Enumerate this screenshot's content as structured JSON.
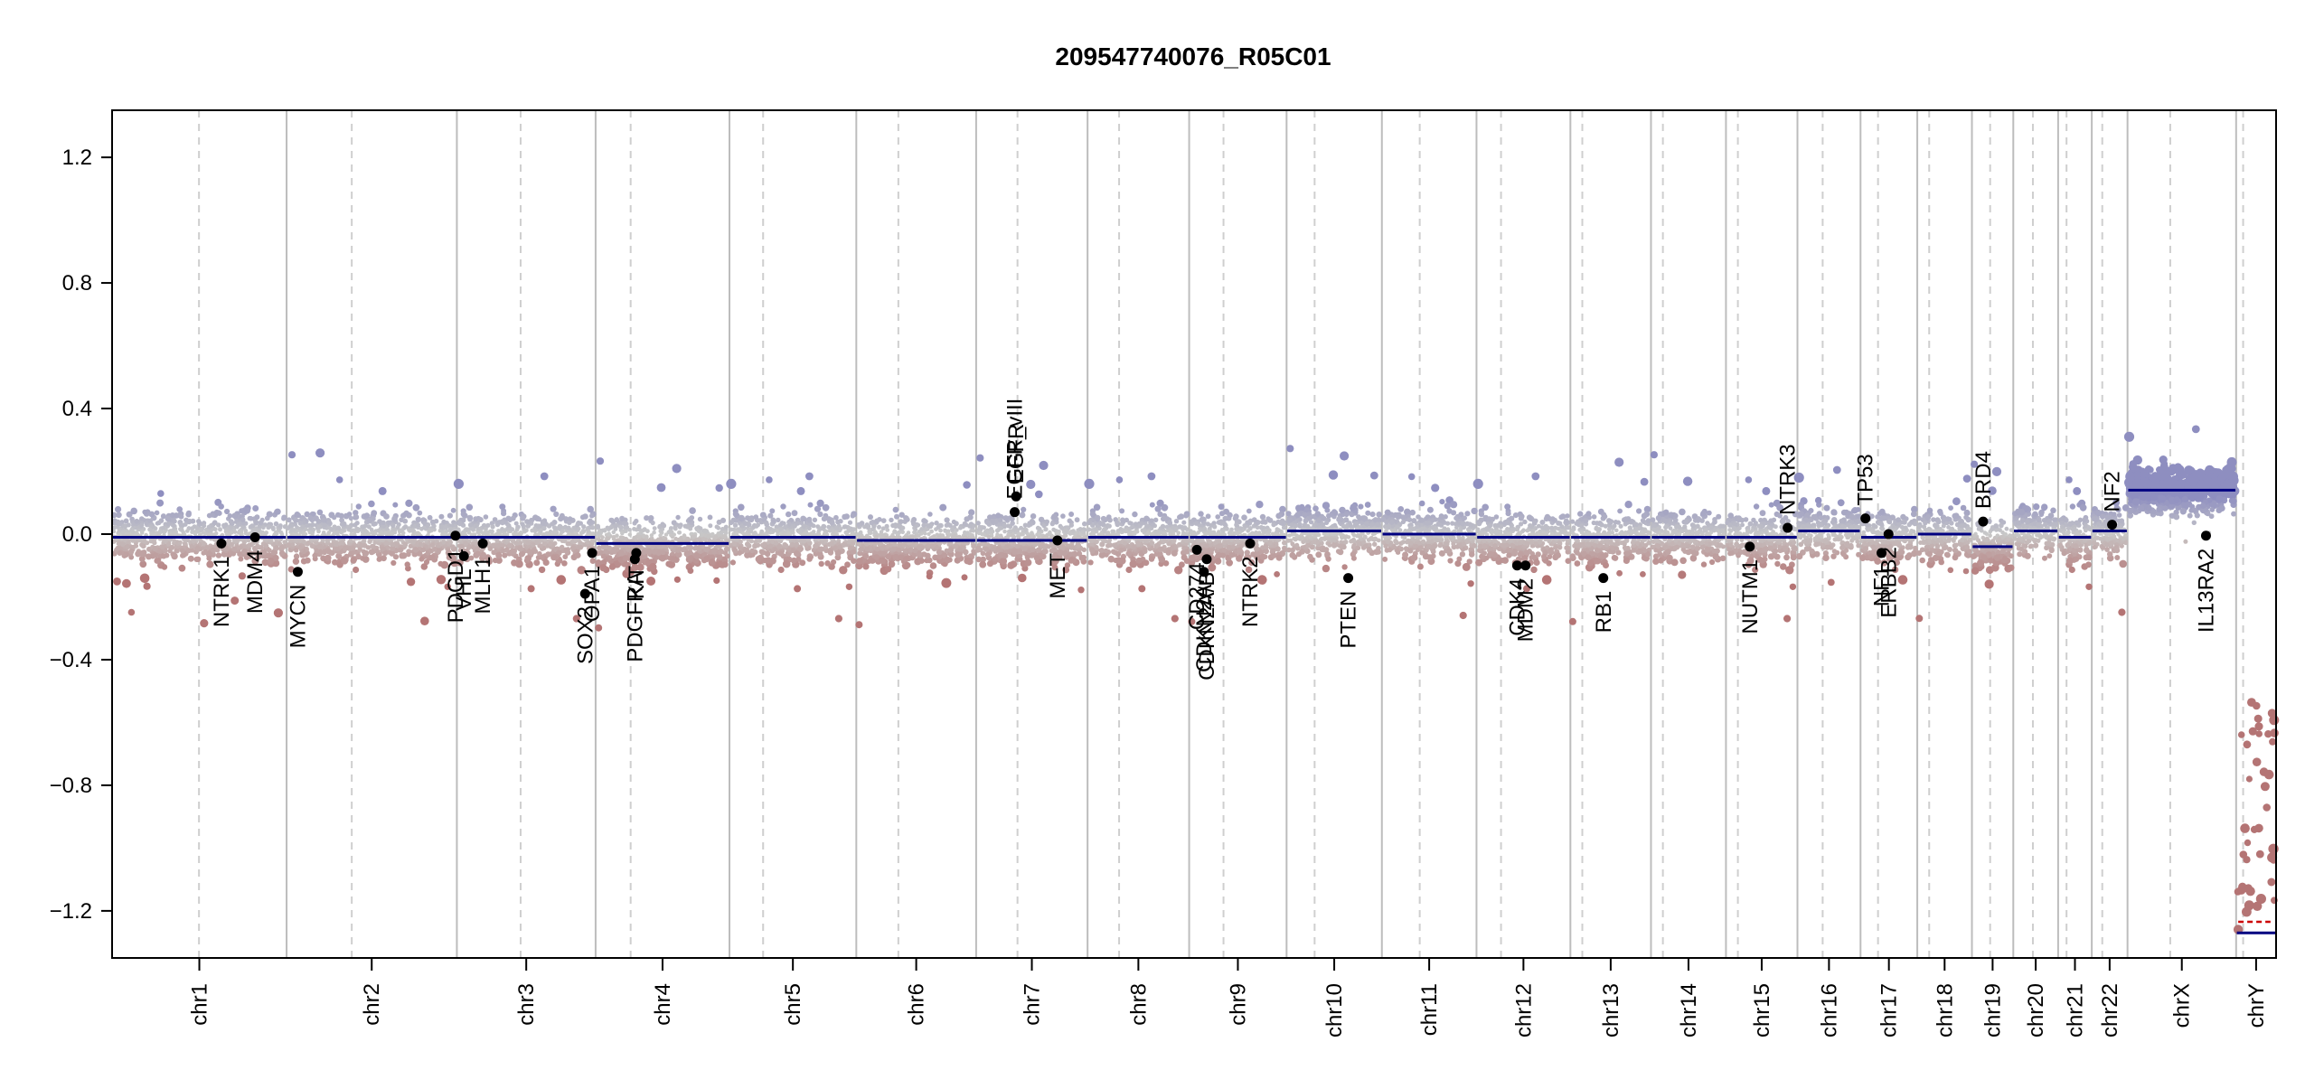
{
  "chart_data": {
    "type": "scatter",
    "title": "209547740076_R05C01",
    "xlabel": "",
    "ylabel": "",
    "ylim": [
      -1.35,
      1.35
    ],
    "y_ticks": [
      -1.2,
      -0.8,
      -0.4,
      0.0,
      0.4,
      0.8,
      1.2
    ],
    "y_tick_labels": [
      "−1.2",
      "−0.8",
      "−0.4",
      "0.0",
      "0.4",
      "0.8",
      "1.2"
    ],
    "grid": false,
    "colors": {
      "positive": "#8e8ec0",
      "neutral": "#c8c8c8",
      "negative": "#b47474",
      "segment": "#000080",
      "gene_point": "#000000",
      "boundary_line": "#bdbdbd",
      "centromere_line": "#cfcfcf",
      "chrY_red": "#cc0000"
    },
    "chromosomes": [
      {
        "name": "chr1",
        "start": 0,
        "end": 249,
        "centromere": 124,
        "seg": [
          -0.01
        ]
      },
      {
        "name": "chr2",
        "start": 249,
        "end": 492,
        "centromere": 342,
        "seg": [
          -0.01
        ]
      },
      {
        "name": "chr3",
        "start": 492,
        "end": 690,
        "centromere": 583,
        "seg": [
          -0.01
        ]
      },
      {
        "name": "chr4",
        "start": 690,
        "end": 881,
        "centromere": 740,
        "seg": [
          -0.03
        ]
      },
      {
        "name": "chr5",
        "start": 881,
        "end": 1062,
        "centromere": 929,
        "seg": [
          -0.01
        ]
      },
      {
        "name": "chr6",
        "start": 1062,
        "end": 1233,
        "centromere": 1122,
        "seg": [
          -0.02
        ]
      },
      {
        "name": "chr7",
        "start": 1233,
        "end": 1392,
        "centromere": 1292,
        "seg": [
          -0.02
        ]
      },
      {
        "name": "chr8",
        "start": 1392,
        "end": 1537,
        "centromere": 1437,
        "seg": [
          -0.01
        ]
      },
      {
        "name": "chr9",
        "start": 1537,
        "end": 1676,
        "centromere": 1586,
        "seg": [
          -0.01
        ]
      },
      {
        "name": "chr10",
        "start": 1676,
        "end": 1812,
        "centromere": 1716,
        "seg": [
          0.01
        ]
      },
      {
        "name": "chr11",
        "start": 1812,
        "end": 1947,
        "centromere": 1866,
        "seg": [
          0.0
        ]
      },
      {
        "name": "chr12",
        "start": 1947,
        "end": 2081,
        "centromere": 1982,
        "seg": [
          -0.01
        ]
      },
      {
        "name": "chr13",
        "start": 2081,
        "end": 2196,
        "centromere": 2098,
        "seg": [
          -0.01
        ]
      },
      {
        "name": "chr14",
        "start": 2196,
        "end": 2303,
        "centromere": 2213,
        "seg": [
          -0.01
        ]
      },
      {
        "name": "chr15",
        "start": 2303,
        "end": 2405,
        "centromere": 2320,
        "seg": [
          -0.01
        ]
      },
      {
        "name": "chr16",
        "start": 2405,
        "end": 2495,
        "centromere": 2441,
        "seg": [
          0.01
        ]
      },
      {
        "name": "chr17",
        "start": 2495,
        "end": 2576,
        "centromere": 2520,
        "seg": [
          -0.01
        ]
      },
      {
        "name": "chr18",
        "start": 2576,
        "end": 2654,
        "centromere": 2593,
        "seg": [
          0.0
        ]
      },
      {
        "name": "chr19",
        "start": 2654,
        "end": 2713,
        "centromere": 2680,
        "seg": [
          -0.04
        ]
      },
      {
        "name": "chr20",
        "start": 2713,
        "end": 2777,
        "centromere": 2741,
        "seg": [
          0.01
        ]
      },
      {
        "name": "chr21",
        "start": 2777,
        "end": 2825,
        "centromere": 2789,
        "seg": [
          -0.01
        ]
      },
      {
        "name": "chr22",
        "start": 2825,
        "end": 2876,
        "centromere": 2840,
        "seg": [
          0.01
        ]
      },
      {
        "name": "chrX",
        "start": 2876,
        "end": 3031,
        "centromere": 2937,
        "seg": [
          0.14
        ]
      },
      {
        "name": "chrY",
        "start": 3031,
        "end": 3088,
        "centromere": 3041,
        "seg": [
          -1.27
        ]
      }
    ],
    "genes": [
      {
        "name": "NTRK1",
        "x": 156,
        "y": -0.03
      },
      {
        "name": "MDM4",
        "x": 204,
        "y": -0.01
      },
      {
        "name": "MYCN",
        "x": 265,
        "y": -0.12
      },
      {
        "name": "PDGD1",
        "x": 490,
        "y": -0.005
      },
      {
        "name": "VHL",
        "x": 502,
        "y": -0.07
      },
      {
        "name": "MLH1",
        "x": 529,
        "y": -0.03
      },
      {
        "name": "SOX2",
        "x": 675,
        "y": -0.19
      },
      {
        "name": "OPA1",
        "x": 685,
        "y": -0.06
      },
      {
        "name": "PDGFRA",
        "x": 746,
        "y": -0.08
      },
      {
        "name": "KIT",
        "x": 748,
        "y": -0.06
      },
      {
        "name": "EGFR_vIII",
        "x": 1288,
        "y": 0.07
      },
      {
        "name": "EGFR",
        "x": 1290,
        "y": 0.12
      },
      {
        "name": "MET",
        "x": 1349,
        "y": -0.02
      },
      {
        "name": "CD274",
        "x": 1548,
        "y": -0.05
      },
      {
        "name": "CDKN2A/B",
        "x": 1562,
        "y": -0.08
      },
      {
        "name": "CDKN2A",
        "x": 1558,
        "y": -0.12
      },
      {
        "name": "NTRK2",
        "x": 1624,
        "y": -0.03
      },
      {
        "name": "PTEN",
        "x": 1764,
        "y": -0.14
      },
      {
        "name": "CDK4",
        "x": 2005,
        "y": -0.1
      },
      {
        "name": "MDM2",
        "x": 2017,
        "y": -0.1
      },
      {
        "name": "RB1",
        "x": 2128,
        "y": -0.14
      },
      {
        "name": "NUTM1",
        "x": 2337,
        "y": -0.04
      },
      {
        "name": "NTRK3",
        "x": 2391,
        "y": 0.02
      },
      {
        "name": "TP53",
        "x": 2502,
        "y": 0.05
      },
      {
        "name": "ERBB2",
        "x": 2535,
        "y": 0.0
      },
      {
        "name": "NF1",
        "x": 2525,
        "y": -0.06
      },
      {
        "name": "BRD4",
        "x": 2670,
        "y": 0.04
      },
      {
        "name": "NF2",
        "x": 2854,
        "y": 0.03
      },
      {
        "name": "IL13RA2",
        "x": 2988,
        "y": -0.005
      }
    ]
  }
}
